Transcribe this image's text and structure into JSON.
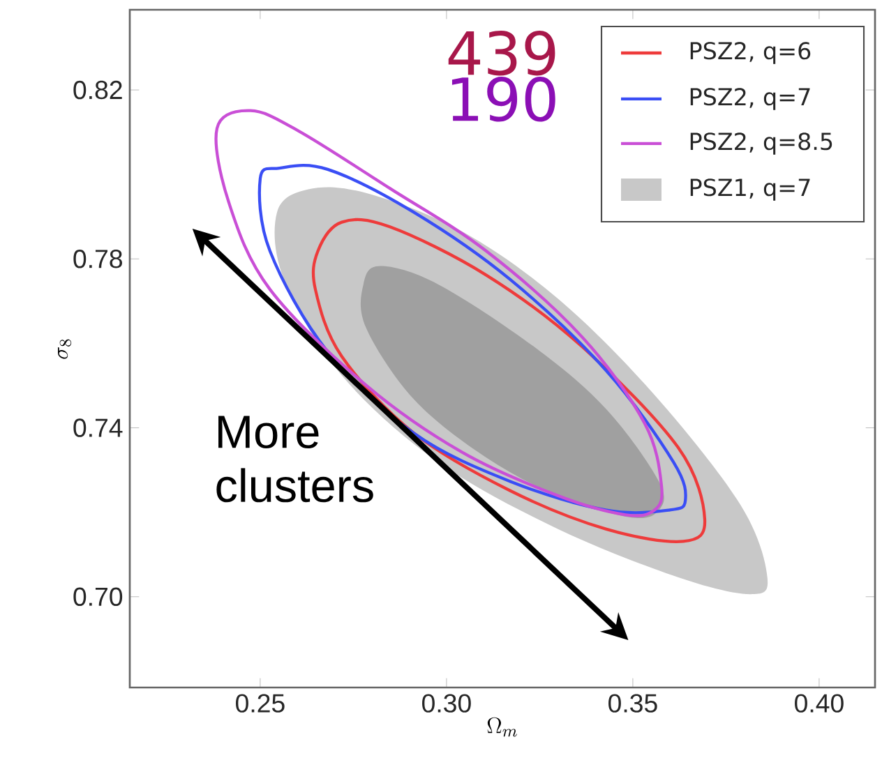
{
  "chart_data": {
    "type": "line",
    "xlabel": "\\Omega_m",
    "ylabel": "\\sigma_8",
    "xlim": [
      0.215,
      0.415
    ],
    "ylim": [
      0.6785,
      0.839
    ],
    "xticks": [
      {
        "value": 0.25,
        "label": "0.25"
      },
      {
        "value": 0.3,
        "label": "0.30"
      },
      {
        "value": 0.35,
        "label": "0.35"
      },
      {
        "value": 0.4,
        "label": "0.40"
      }
    ],
    "yticks": [
      {
        "value": 0.7,
        "label": "0.70"
      },
      {
        "value": 0.74,
        "label": "0.74"
      },
      {
        "value": 0.78,
        "label": "0.78"
      },
      {
        "value": 0.82,
        "label": "0.82"
      }
    ],
    "annotations": [
      "439",
      "190",
      "More clusters",
      "PSZ2, q=6",
      "PSZ2, q=7",
      "PSZ2, q=8.5",
      "PSZ1, q=7"
    ]
  }
}
